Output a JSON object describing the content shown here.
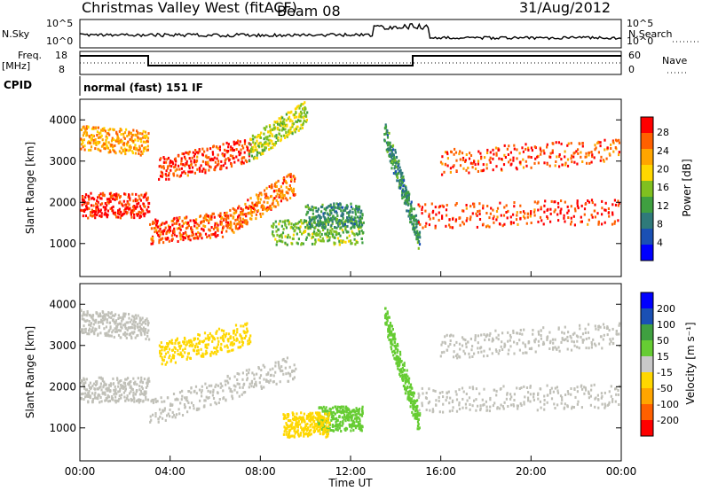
{
  "header": {
    "station": "Christmas Valley West (fitACF)",
    "beam": "Beam 08",
    "date": "31/Aug/2012"
  },
  "panels": {
    "noise": {
      "left_label": "N.Sky",
      "right_label": "N.Search",
      "left_ticks": [
        "10^5",
        "10^0"
      ],
      "right_ticks": [
        "10^5",
        "10^0"
      ]
    },
    "freq": {
      "left_label": "Freq.",
      "left_unit": "[MHz]",
      "right_label": "Nave",
      "left_ticks": [
        "18",
        "8"
      ],
      "right_ticks": [
        "60",
        "0"
      ]
    },
    "cpid": {
      "label": "CPID",
      "text": "normal (fast) 151 IF"
    }
  },
  "colors": {
    "power_bar": [
      "#0000ff",
      "#1a50b4",
      "#2f7a7a",
      "#3fa040",
      "#80c020",
      "#ffd700",
      "#ffa500",
      "#ff6000",
      "#ff0000"
    ],
    "velocity_bar": [
      "#ff0000",
      "#ff6000",
      "#ffa500",
      "#ffd700",
      "#c8c8c8",
      "#66cc33",
      "#3fa040",
      "#1a50b4",
      "#0000ff"
    ],
    "ground_scatter": "#c0c0b8"
  },
  "chart_data": [
    {
      "type": "heatmap",
      "title": "",
      "ylabel": "Slant Range [km]",
      "xlabel": "",
      "x_ticks": [
        "00:00",
        "04:00",
        "08:00",
        "12:00",
        "16:00",
        "20:00",
        "00:00"
      ],
      "y_ticks": [
        "1000",
        "2000",
        "3000",
        "4000"
      ],
      "xlim": [
        0,
        24
      ],
      "ylim": [
        200,
        4500
      ],
      "colorbar_label": "Power [dB]",
      "colorbar_ticks": [
        "4",
        "8",
        "12",
        "16",
        "20",
        "24",
        "28"
      ],
      "clim": [
        0,
        30
      ],
      "series": [
        {
          "x": [
            0,
            3
          ],
          "y": [
            1950,
            1950
          ],
          "value": 28
        },
        {
          "x": [
            0,
            3
          ],
          "y": [
            3600,
            3450
          ],
          "value": 22
        },
        {
          "x": [
            3.1,
            6.5
          ],
          "y": [
            1300,
            1500
          ],
          "value": 26
        },
        {
          "x": [
            6.5,
            9.5
          ],
          "y": [
            1500,
            2500
          ],
          "value": 24
        },
        {
          "x": [
            3.5,
            7.5
          ],
          "y": [
            2800,
            3300
          ],
          "value": 27
        },
        {
          "x": [
            7.5,
            10
          ],
          "y": [
            3300,
            4200
          ],
          "value": 16
        },
        {
          "x": [
            8.5,
            12.5
          ],
          "y": [
            1300,
            1300
          ],
          "value": 14
        },
        {
          "x": [
            10,
            12.5
          ],
          "y": [
            1700,
            1700
          ],
          "value": 10
        },
        {
          "x": [
            13.5,
            15
          ],
          "y": [
            3700,
            1200
          ],
          "value": 10
        },
        {
          "x": [
            15,
            24
          ],
          "y": [
            1700,
            1800
          ],
          "value": 27
        },
        {
          "x": [
            16,
            24
          ],
          "y": [
            3000,
            3300
          ],
          "value": 26
        }
      ]
    },
    {
      "type": "heatmap",
      "title": "",
      "ylabel": "Slant Range [km]",
      "xlabel": "Time UT",
      "x_ticks": [
        "00:00",
        "04:00",
        "08:00",
        "12:00",
        "16:00",
        "20:00",
        "00:00"
      ],
      "y_ticks": [
        "1000",
        "2000",
        "3000",
        "4000"
      ],
      "xlim": [
        0,
        24
      ],
      "ylim": [
        200,
        4500
      ],
      "colorbar_label": "Velocity [m s⁻¹]",
      "colorbar_ticks": [
        "200",
        "100",
        "50",
        "15",
        "-15",
        "-50",
        "-100",
        "-200"
      ],
      "clim": [
        -250,
        250
      ],
      "series": [
        {
          "x": [
            0,
            3
          ],
          "y": [
            1950,
            1950
          ],
          "value": 0
        },
        {
          "x": [
            0,
            3
          ],
          "y": [
            3600,
            3450
          ],
          "value": 0
        },
        {
          "x": [
            3.1,
            9.5
          ],
          "y": [
            1400,
            2500
          ],
          "value": 0
        },
        {
          "x": [
            3.5,
            7.5
          ],
          "y": [
            2800,
            3300
          ],
          "value": -60
        },
        {
          "x": [
            10.5,
            12.5
          ],
          "y": [
            1250,
            1250
          ],
          "value": 60
        },
        {
          "x": [
            9,
            11
          ],
          "y": [
            1100,
            1100
          ],
          "value": -60
        },
        {
          "x": [
            13.5,
            15
          ],
          "y": [
            3700,
            1200
          ],
          "value": 60
        },
        {
          "x": [
            15,
            24
          ],
          "y": [
            1700,
            1800
          ],
          "value": 0
        },
        {
          "x": [
            16,
            24
          ],
          "y": [
            3000,
            3300
          ],
          "value": 0
        }
      ]
    }
  ]
}
